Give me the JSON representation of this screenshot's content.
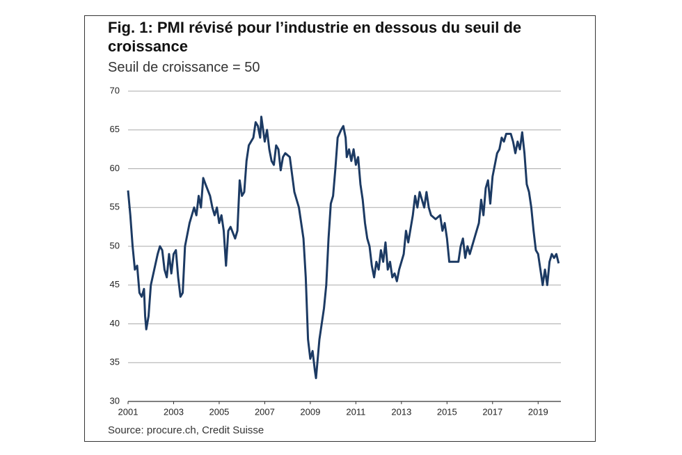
{
  "chart_data": {
    "type": "line",
    "title": "Fig. 1: PMI révisé pour l’industrie en dessous du seuil de croissance",
    "subtitle": "Seuil de croissance = 50",
    "source": "Source: procure.ch, Credit Suisse",
    "xlim": [
      2001,
      2020
    ],
    "xticks": [
      2001,
      2003,
      2005,
      2007,
      2009,
      2011,
      2013,
      2015,
      2017,
      2019
    ],
    "ylim": [
      30,
      70
    ],
    "yticks": [
      30,
      35,
      40,
      45,
      50,
      55,
      60,
      65,
      70
    ],
    "grid": true,
    "series": [
      {
        "color": "#1c3a63",
        "x": [
          2001.0,
          2001.1,
          2001.2,
          2001.3,
          2001.4,
          2001.5,
          2001.6,
          2001.7,
          2001.75,
          2001.8,
          2001.9,
          2002.0,
          2002.15,
          2002.3,
          2002.4,
          2002.5,
          2002.6,
          2002.7,
          2002.8,
          2002.9,
          2003.0,
          2003.1,
          2003.2,
          2003.3,
          2003.4,
          2003.5,
          2003.7,
          2003.9,
          2004.0,
          2004.1,
          2004.2,
          2004.3,
          2004.4,
          2004.6,
          2004.7,
          2004.8,
          2004.9,
          2005.0,
          2005.1,
          2005.2,
          2005.3,
          2005.4,
          2005.5,
          2005.7,
          2005.8,
          2005.9,
          2006.0,
          2006.1,
          2006.2,
          2006.3,
          2006.5,
          2006.6,
          2006.7,
          2006.8,
          2006.85,
          2007.0,
          2007.1,
          2007.2,
          2007.3,
          2007.4,
          2007.5,
          2007.6,
          2007.7,
          2007.8,
          2007.9,
          2008.1,
          2008.3,
          2008.5,
          2008.7,
          2008.8,
          2008.9,
          2009.0,
          2009.1,
          2009.2,
          2009.25,
          2009.4,
          2009.6,
          2009.7,
          2009.8,
          2009.9,
          2010.0,
          2010.1,
          2010.2,
          2010.35,
          2010.45,
          2010.55,
          2010.6,
          2010.7,
          2010.8,
          2010.9,
          2011.0,
          2011.1,
          2011.2,
          2011.3,
          2011.4,
          2011.5,
          2011.6,
          2011.7,
          2011.8,
          2011.9,
          2012.0,
          2012.1,
          2012.2,
          2012.3,
          2012.4,
          2012.5,
          2012.6,
          2012.7,
          2012.8,
          2012.9,
          2013.1,
          2013.2,
          2013.3,
          2013.5,
          2013.6,
          2013.7,
          2013.8,
          2013.9,
          2014.0,
          2014.1,
          2014.2,
          2014.3,
          2014.5,
          2014.7,
          2014.8,
          2014.9,
          2015.0,
          2015.1,
          2015.3,
          2015.5,
          2015.6,
          2015.7,
          2015.8,
          2015.9,
          2016.0,
          2016.2,
          2016.4,
          2016.5,
          2016.6,
          2016.7,
          2016.8,
          2016.9,
          2017.0,
          2017.2,
          2017.3,
          2017.4,
          2017.5,
          2017.6,
          2017.8,
          2017.9,
          2018.0,
          2018.1,
          2018.2,
          2018.3,
          2018.4,
          2018.5,
          2018.6,
          2018.7,
          2018.8,
          2018.9,
          2019.0,
          2019.1,
          2019.2,
          2019.3,
          2019.4,
          2019.5,
          2019.6,
          2019.7,
          2019.8,
          2019.9
        ],
        "values": [
          57.2,
          54,
          50,
          47,
          47.5,
          44,
          43.5,
          44.5,
          41,
          39.3,
          41,
          45,
          47,
          49,
          50,
          49.5,
          47,
          46,
          49,
          46.5,
          49,
          49.5,
          46,
          43.5,
          44,
          50,
          53,
          55,
          54,
          56.5,
          55,
          58.8,
          58,
          56.5,
          55,
          54,
          55,
          53,
          54,
          52,
          47.5,
          52,
          52.5,
          51,
          52,
          58.5,
          56.5,
          57,
          61,
          63,
          64,
          66,
          65.5,
          64,
          66.7,
          63.5,
          65,
          62.5,
          61,
          60.5,
          63,
          62.5,
          59.8,
          61.5,
          62,
          61.5,
          57,
          55,
          51,
          46,
          38,
          35.5,
          36.5,
          34,
          33,
          38,
          42,
          45,
          51,
          55.5,
          56.5,
          60,
          64,
          65,
          65.5,
          64,
          61.5,
          62.5,
          61,
          62.5,
          60.5,
          61.5,
          58,
          56,
          53,
          51,
          50,
          47.5,
          46,
          48,
          47,
          49.5,
          48,
          50.5,
          47,
          48,
          46,
          46.5,
          45.5,
          47,
          49,
          52,
          50.5,
          54,
          56.5,
          55,
          57,
          56,
          55,
          57,
          55,
          54,
          53.5,
          54,
          52,
          53,
          51,
          48,
          48,
          48,
          50,
          51,
          48.5,
          50,
          49,
          51,
          53,
          56,
          54,
          57.5,
          58.5,
          55.5,
          59,
          62,
          62.5,
          64,
          63.5,
          64.5,
          64.5,
          63.5,
          62,
          63.5,
          62.5,
          64.7,
          62,
          58,
          57,
          55,
          52,
          49.5,
          49,
          47,
          45,
          47,
          45,
          48,
          49,
          48.5,
          49,
          47.8
        ]
      }
    ]
  }
}
